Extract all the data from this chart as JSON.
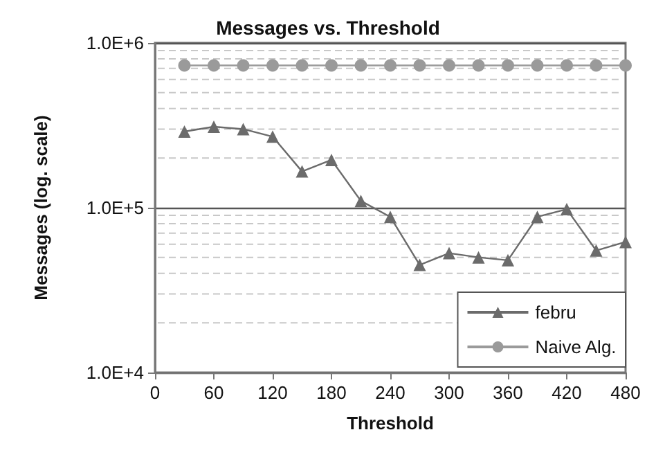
{
  "chart_data": {
    "type": "line",
    "title": "Messages vs. Threshold",
    "xlabel": "Threshold",
    "ylabel": "Messages (log. scale)",
    "log": "y",
    "grid": "y",
    "legend": "bottom right",
    "x": [
      30,
      60,
      90,
      120,
      150,
      180,
      210,
      240,
      270,
      300,
      330,
      360,
      390,
      420,
      450,
      480
    ],
    "xlim": [
      0,
      480
    ],
    "xticks": [
      0,
      60,
      120,
      180,
      240,
      300,
      360,
      420,
      480
    ],
    "ylim": [
      10000,
      1000000
    ],
    "yticks": [
      {
        "value": 10000,
        "label": "1.0E+4"
      },
      {
        "value": 100000,
        "label": "1.0E+5"
      },
      {
        "value": 1000000,
        "label": "1.0E+6"
      }
    ],
    "series": [
      {
        "name": "febru",
        "color": "#6b6b6b",
        "marker": "triangle",
        "values": [
          290000,
          310000,
          300000,
          270000,
          166000,
          195000,
          110000,
          88000,
          45000,
          53000,
          50000,
          48000,
          88000,
          98000,
          55000,
          62000
        ]
      },
      {
        "name": "Naive Alg.",
        "color": "#9a9a9a",
        "marker": "circle",
        "values": [
          730000,
          730000,
          730000,
          730000,
          730000,
          730000,
          730000,
          730000,
          730000,
          730000,
          730000,
          730000,
          730000,
          730000,
          730000,
          730000
        ]
      }
    ]
  }
}
